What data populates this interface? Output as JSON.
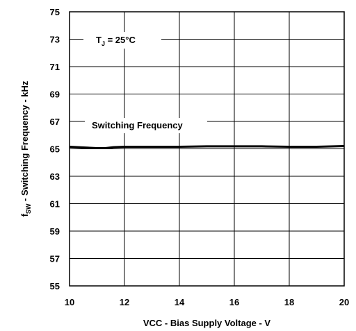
{
  "chart_data": {
    "type": "line",
    "xlabel": "VCC - Bias Supply Voltage - V",
    "ylabel": {
      "main": "f",
      "sub": "SW",
      "rest": " - Switching Frequency - kHz"
    },
    "xlim": [
      10,
      20
    ],
    "ylim": [
      55,
      75
    ],
    "xticks": [
      "10",
      "12",
      "14",
      "16",
      "18",
      "20"
    ],
    "yticks": [
      "55",
      "57",
      "59",
      "61",
      "63",
      "65",
      "67",
      "69",
      "71",
      "73",
      "75"
    ],
    "grid": true,
    "annotations": {
      "temperature": {
        "prefix": "T",
        "sub": "J",
        "suffix": " = 25°C"
      },
      "series_label": "Switching Frequency"
    },
    "series": [
      {
        "name": "Switching Frequency",
        "x": [
          10,
          10.5,
          11,
          11.3,
          11.6,
          12,
          13,
          14,
          15,
          16,
          17,
          18,
          19,
          20
        ],
        "y": [
          65.15,
          65.1,
          65.05,
          65.05,
          65.12,
          65.15,
          65.15,
          65.15,
          65.18,
          65.18,
          65.18,
          65.15,
          65.15,
          65.2
        ]
      }
    ]
  }
}
